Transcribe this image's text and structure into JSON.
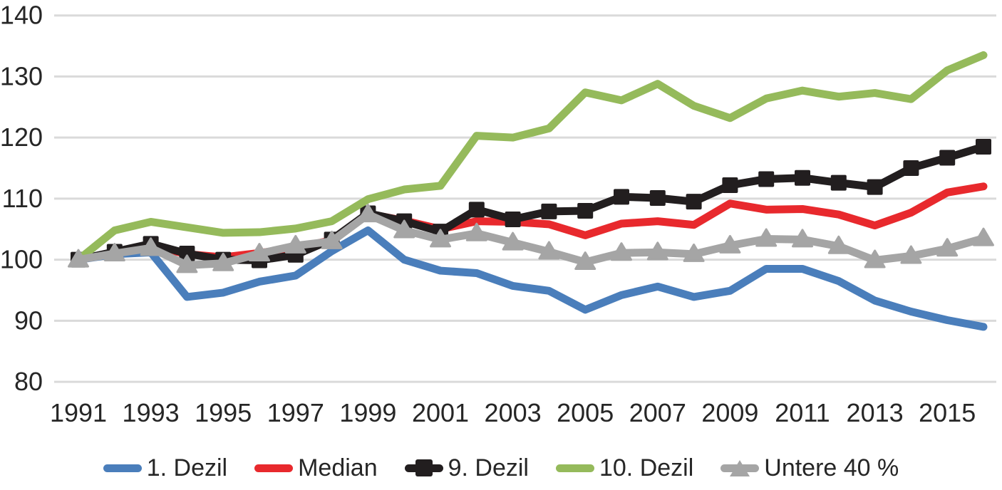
{
  "colors": {
    "background": "#FFFFFF",
    "grid": "#DADADA",
    "text": "#262626",
    "blue": "#4A7EBB",
    "red": "#E8292D",
    "black": "#221E1F",
    "green": "#95BA5B",
    "gray": "#A5A5A5"
  },
  "chart_data": {
    "type": "line",
    "title": "",
    "xlabel": "",
    "ylabel": "",
    "ylim": [
      80,
      140
    ],
    "y_ticks": [
      80,
      90,
      100,
      110,
      120,
      130,
      140
    ],
    "grid": "horizontal",
    "legend_position": "bottom",
    "x": [
      1991,
      1992,
      1993,
      1994,
      1995,
      1996,
      1997,
      1998,
      1999,
      2000,
      2001,
      2002,
      2003,
      2004,
      2005,
      2006,
      2007,
      2008,
      2009,
      2010,
      2011,
      2012,
      2013,
      2014,
      2015,
      2016
    ],
    "x_tick_labels": [
      "1991",
      "1993",
      "1995",
      "1997",
      "1999",
      "2001",
      "2003",
      "2005",
      "2007",
      "2009",
      "2011",
      "2013",
      "2015"
    ],
    "series": [
      {
        "name": "1. Dezil",
        "color": "#4A7EBB",
        "marker": "none",
        "values": [
          100,
          100.9,
          101.2,
          93.9,
          94.6,
          96.4,
          97.4,
          101.4,
          104.8,
          100.0,
          98.2,
          97.8,
          95.7,
          94.9,
          91.8,
          94.2,
          95.6,
          93.9,
          94.9,
          98.5,
          98.5,
          96.5,
          93.3,
          91.5,
          90.1,
          89.0
        ]
      },
      {
        "name": "Median",
        "color": "#E8292D",
        "marker": "none",
        "values": [
          100,
          101.2,
          102.3,
          100.9,
          100.4,
          101.1,
          101.9,
          103.2,
          107.5,
          106.4,
          105.0,
          106.3,
          106.2,
          105.8,
          104.0,
          105.9,
          106.3,
          105.7,
          109.2,
          108.2,
          108.3,
          107.4,
          105.6,
          107.7,
          111.0,
          112.0
        ]
      },
      {
        "name": "9. Dezil",
        "color": "#221E1F",
        "marker": "square",
        "values": [
          100,
          101.3,
          102.6,
          101.0,
          100.0,
          99.9,
          100.8,
          103.3,
          107.6,
          106.3,
          104.6,
          108.2,
          106.6,
          107.9,
          108.0,
          110.3,
          110.1,
          109.5,
          112.2,
          113.2,
          113.4,
          112.6,
          111.9,
          115.0,
          116.7,
          118.5
        ]
      },
      {
        "name": "10. Dezil",
        "color": "#95BA5B",
        "marker": "none",
        "values": [
          100,
          104.8,
          106.2,
          105.3,
          104.4,
          104.5,
          105.1,
          106.3,
          109.9,
          111.5,
          112.1,
          120.3,
          120.0,
          121.5,
          127.4,
          126.1,
          128.8,
          125.2,
          123.2,
          126.4,
          127.7,
          126.7,
          127.3,
          126.3,
          131.0,
          133.5
        ]
      },
      {
        "name": "Untere 40 %",
        "color": "#A5A5A5",
        "marker": "triangle",
        "values": [
          100,
          101.0,
          101.9,
          99.1,
          99.4,
          101.0,
          102.3,
          103.0,
          107.4,
          104.8,
          103.3,
          104.3,
          102.8,
          101.3,
          99.6,
          101.1,
          101.2,
          100.9,
          102.3,
          103.4,
          103.3,
          102.2,
          99.9,
          100.6,
          101.8,
          103.5
        ]
      }
    ]
  }
}
